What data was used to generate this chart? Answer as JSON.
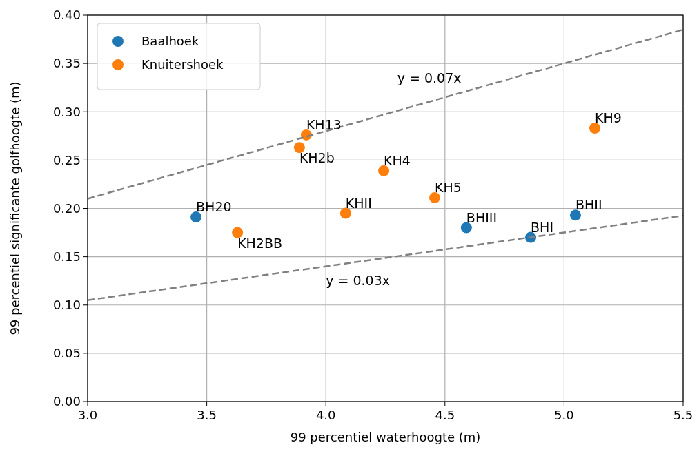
{
  "chart_data": {
    "type": "scatter",
    "xlabel": "99 percentiel waterhoogte (m)",
    "ylabel": "99 percentiel significante golfhoogte (m)",
    "xlim": [
      3.0,
      5.5
    ],
    "xticks": [
      {
        "value": 3.0,
        "label": "3.0"
      },
      3.5,
      {
        "value": 4.0,
        "label": "4.0"
      },
      4.5,
      {
        "value": 5.0,
        "label": "5.0"
      },
      5.5
    ],
    "ylim": [
      0,
      0.4
    ],
    "yticks": [
      {
        "value": 0,
        "label": "0.00"
      },
      {
        "value": 0.05,
        "label": "0.05"
      },
      {
        "value": 0.1,
        "label": "0.10"
      },
      {
        "value": 0.15,
        "label": "0.15"
      },
      {
        "value": 0.2,
        "label": "0.20"
      },
      {
        "value": 0.25,
        "label": "0.25"
      },
      {
        "value": 0.3,
        "label": "0.30"
      },
      {
        "value": 0.35,
        "label": "0.35"
      },
      {
        "value": 0.4,
        "label": "0.40"
      }
    ],
    "grid": true,
    "legend": "top left",
    "marker": "circle",
    "series": [
      {
        "name": "Baalhoek",
        "color": "#1f77b4",
        "x": [
          3.455,
          4.59,
          4.86,
          5.048
        ],
        "values": [
          0.191,
          0.18,
          0.17,
          0.193
        ]
      },
      {
        "name": "Knuitershoek",
        "color": "#ff7f0e",
        "x": [
          3.629,
          3.889,
          3.918,
          4.083,
          4.243,
          4.457,
          5.129
        ],
        "values": [
          0.175,
          0.263,
          0.276,
          0.195,
          0.239,
          0.211,
          0.283
        ]
      },
      {
        "type": "line",
        "color": "#808080",
        "line_style": "dashed",
        "marker": "none",
        "x": [
          3.0,
          5.5
        ],
        "values": [
          0.21,
          0.385
        ]
      },
      {
        "type": "line",
        "color": "#808080",
        "line_style": "dashed",
        "marker": "none",
        "x": [
          3.0,
          5.5
        ],
        "values": [
          0.105,
          0.1925
        ]
      }
    ],
    "annotations": [
      {
        "text": "BH20",
        "x": 3.455,
        "y": 0.191
      },
      {
        "text": "KH2BB",
        "x": 3.629,
        "y": 0.175
      },
      {
        "text": "KH2b",
        "x": 3.889,
        "y": 0.263
      },
      {
        "text": "KH13",
        "x": 3.918,
        "y": 0.276
      },
      {
        "text": "KHII",
        "x": 4.083,
        "y": 0.195
      },
      {
        "text": "KH4",
        "x": 4.243,
        "y": 0.239
      },
      {
        "text": "KH5",
        "x": 4.457,
        "y": 0.211
      },
      {
        "text": "BHIII",
        "x": 4.59,
        "y": 0.18
      },
      {
        "text": "BHI",
        "x": 4.86,
        "y": 0.17
      },
      {
        "text": "BHII",
        "x": 5.048,
        "y": 0.193
      },
      {
        "text": "KH9",
        "x": 5.129,
        "y": 0.283
      },
      {
        "text": "y = 0.07x",
        "x": 4.3,
        "y": 0.301
      },
      {
        "text": "y = 0.03x",
        "x": 4.0,
        "y": 0.14
      }
    ]
  }
}
